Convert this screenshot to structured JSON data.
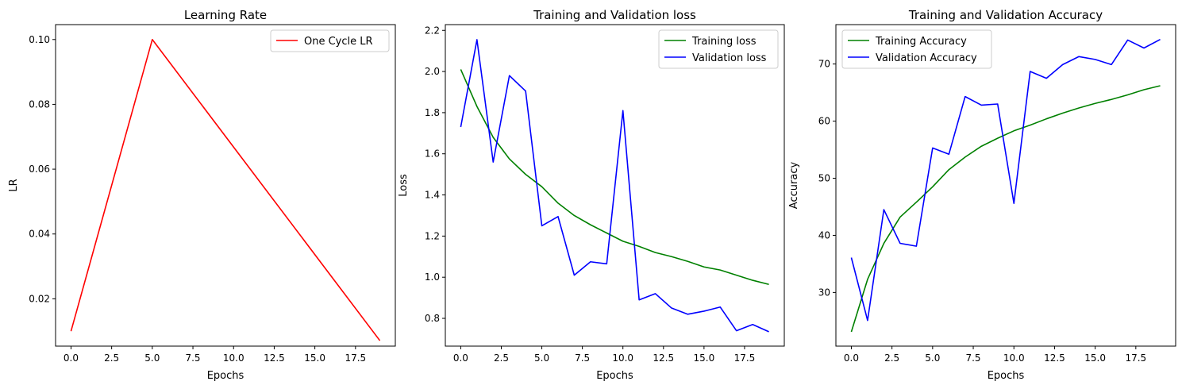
{
  "chart_data": [
    {
      "type": "line",
      "title": "Learning Rate",
      "xlabel": "Epochs",
      "ylabel": "LR",
      "xlim": [
        -0.95,
        19.95
      ],
      "ylim": [
        0.0054,
        0.1046
      ],
      "xticks": [
        0.0,
        2.5,
        5.0,
        7.5,
        10.0,
        12.5,
        15.0,
        17.5
      ],
      "xtick_labels": [
        "0.0",
        "2.5",
        "5.0",
        "7.5",
        "10.0",
        "12.5",
        "15.0",
        "17.5"
      ],
      "yticks": [
        0.02,
        0.04,
        0.06,
        0.08,
        0.1
      ],
      "ytick_labels": [
        "0.02",
        "0.04",
        "0.06",
        "0.08",
        "0.10"
      ],
      "legend_position": "upper right",
      "grid": false,
      "series": [
        {
          "name": "One Cycle LR",
          "color": "#ff0000",
          "x": [
            0,
            5,
            19
          ],
          "y": [
            0.01,
            0.1,
            0.0071
          ]
        }
      ]
    },
    {
      "type": "line",
      "title": "Training and Validation loss",
      "xlabel": "Epochs",
      "ylabel": "Loss",
      "xlim": [
        -0.95,
        19.95
      ],
      "ylim": [
        0.665,
        2.228
      ],
      "xticks": [
        0.0,
        2.5,
        5.0,
        7.5,
        10.0,
        12.5,
        15.0,
        17.5
      ],
      "xtick_labels": [
        "0.0",
        "2.5",
        "5.0",
        "7.5",
        "10.0",
        "12.5",
        "15.0",
        "17.5"
      ],
      "yticks": [
        0.8,
        1.0,
        1.2,
        1.4,
        1.6,
        1.8,
        2.0,
        2.2
      ],
      "ytick_labels": [
        "0.8",
        "1.0",
        "1.2",
        "1.4",
        "1.6",
        "1.8",
        "2.0",
        "2.2"
      ],
      "legend_position": "upper right",
      "grid": false,
      "series": [
        {
          "name": "Training loss",
          "color": "#008000",
          "x": [
            0,
            1,
            2,
            3,
            4,
            5,
            6,
            7,
            8,
            9,
            10,
            11,
            12,
            13,
            14,
            15,
            16,
            17,
            18,
            19
          ],
          "y": [
            2.01,
            1.83,
            1.68,
            1.575,
            1.5,
            1.44,
            1.36,
            1.3,
            1.255,
            1.215,
            1.175,
            1.15,
            1.12,
            1.1,
            1.077,
            1.05,
            1.035,
            1.01,
            0.985,
            0.965
          ]
        },
        {
          "name": "Validation loss",
          "color": "#0000ff",
          "x": [
            0,
            1,
            2,
            3,
            4,
            5,
            6,
            7,
            8,
            9,
            10,
            11,
            12,
            13,
            14,
            15,
            16,
            17,
            18,
            19
          ],
          "y": [
            1.73,
            2.155,
            1.56,
            1.98,
            1.905,
            1.25,
            1.295,
            1.01,
            1.075,
            1.065,
            1.81,
            0.89,
            0.92,
            0.85,
            0.82,
            0.835,
            0.855,
            0.74,
            0.77,
            0.735
          ]
        }
      ]
    },
    {
      "type": "line",
      "title": "Training and Validation Accuracy",
      "xlabel": "Epochs",
      "ylabel": "Accuracy",
      "xlim": [
        -0.95,
        19.95
      ],
      "ylim": [
        20.6,
        76.9
      ],
      "xticks": [
        0.0,
        2.5,
        5.0,
        7.5,
        10.0,
        12.5,
        15.0,
        17.5
      ],
      "xtick_labels": [
        "0.0",
        "2.5",
        "5.0",
        "7.5",
        "10.0",
        "12.5",
        "15.0",
        "17.5"
      ],
      "yticks": [
        30,
        40,
        50,
        60,
        70
      ],
      "ytick_labels": [
        "30",
        "40",
        "50",
        "60",
        "70"
      ],
      "legend_position": "upper left",
      "grid": false,
      "series": [
        {
          "name": "Training Accuracy",
          "color": "#008000",
          "x": [
            0,
            1,
            2,
            3,
            4,
            5,
            6,
            7,
            8,
            9,
            10,
            11,
            12,
            13,
            14,
            15,
            16,
            17,
            18,
            19
          ],
          "y": [
            23.1,
            32.3,
            38.6,
            43.2,
            45.8,
            48.5,
            51.5,
            53.7,
            55.6,
            57.0,
            58.3,
            59.3,
            60.4,
            61.4,
            62.3,
            63.1,
            63.8,
            64.6,
            65.5,
            66.2
          ]
        },
        {
          "name": "Validation Accuracy",
          "color": "#0000ff",
          "x": [
            0,
            1,
            2,
            3,
            4,
            5,
            6,
            7,
            8,
            9,
            10,
            11,
            12,
            13,
            14,
            15,
            16,
            17,
            18,
            19
          ],
          "y": [
            36.1,
            25.1,
            44.5,
            38.6,
            38.1,
            55.3,
            54.2,
            64.3,
            62.8,
            63.0,
            45.6,
            68.7,
            67.5,
            69.9,
            71.3,
            70.8,
            69.9,
            74.2,
            72.8,
            74.3
          ]
        }
      ]
    }
  ]
}
